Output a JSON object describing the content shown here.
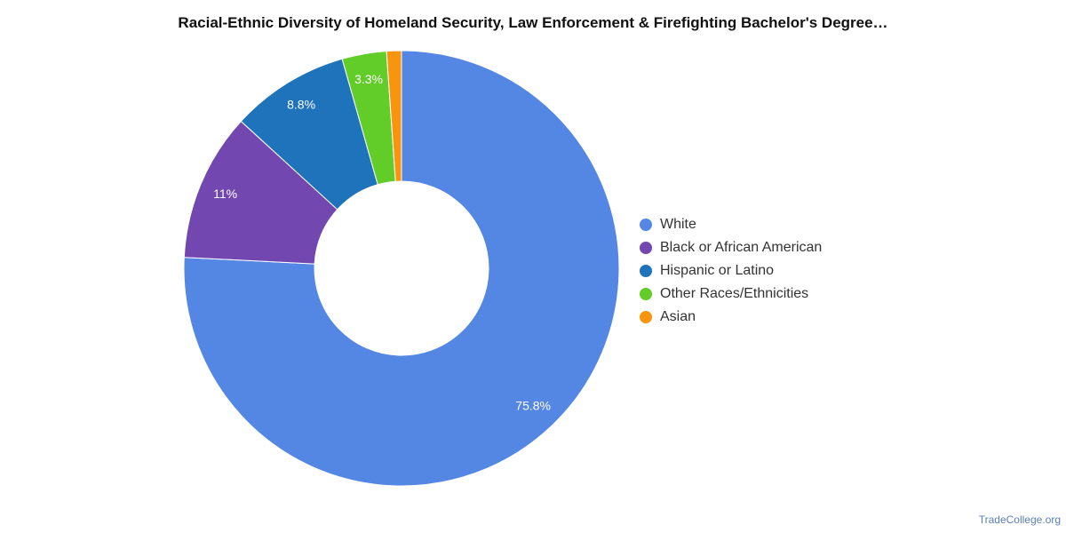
{
  "title": "Racial-Ethnic Diversity of Homeland Security, Law Enforcement & Firefighting Bachelor's Degree…",
  "credit": "TradeCollege.org",
  "chart_data": {
    "type": "pie",
    "style": "donut",
    "title": "Racial-Ethnic Diversity of Homeland Security, Law Enforcement & Firefighting Bachelor's Degree…",
    "legend_position": "right",
    "slices": [
      {
        "label": "White",
        "value": 75.8,
        "display": "75.8%",
        "color": "#5486e3"
      },
      {
        "label": "Black or African American",
        "value": 11.0,
        "display": "11%",
        "color": "#7347b0"
      },
      {
        "label": "Hispanic or Latino",
        "value": 8.8,
        "display": "8.8%",
        "color": "#1f73ba"
      },
      {
        "label": "Other Races/Ethnicities",
        "value": 3.3,
        "display": "3.3%",
        "color": "#62cc28"
      },
      {
        "label": "Asian",
        "value": 1.1,
        "display": "",
        "color": "#f7960e"
      }
    ]
  }
}
